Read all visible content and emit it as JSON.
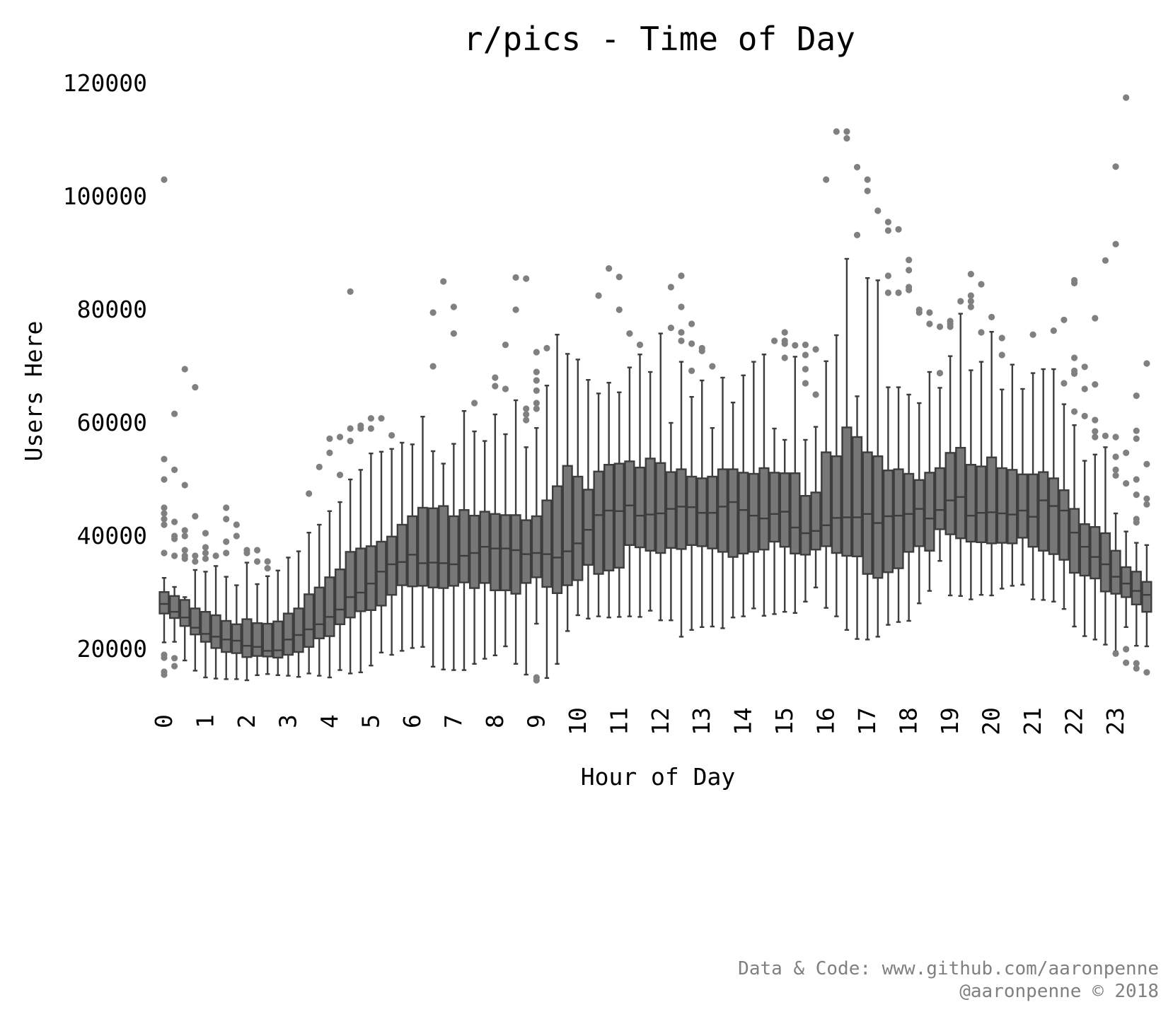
{
  "chart_data": {
    "type": "box",
    "title": "r/pics - Time of Day",
    "xlabel": "Hour of Day",
    "ylabel": "Users Here",
    "ylim": [
      10000,
      122000
    ],
    "yticks": [
      "20000",
      "40000",
      "60000",
      "80000",
      "100000",
      "120000"
    ],
    "ytick_values": [
      20000,
      40000,
      60000,
      80000,
      100000,
      120000
    ],
    "xtick_labels": [
      "0",
      "1",
      "2",
      "3",
      "4",
      "5",
      "6",
      "7",
      "8",
      "9",
      "10",
      "11",
      "12",
      "13",
      "14",
      "15",
      "16",
      "17",
      "18",
      "19",
      "20",
      "21",
      "22",
      "23"
    ],
    "x_axis_note": "96 boxes, one per 15-minute interval (4 per hour)",
    "box_color": "#777777",
    "line_color": "#3d3d3d",
    "flier_color": "#808080",
    "grid": false,
    "credit_line1": "Data & Code: www.github.com/aaronpenne",
    "credit_line2": "@aaronpenne © 2018",
    "boxes": [
      [
        21200,
        26300,
        28000,
        30100,
        32600,
        [
          103000,
          53600,
          50000,
          45000,
          44000,
          43000,
          42000,
          37000,
          19000,
          18500,
          16000,
          15500
        ]
      ],
      [
        21300,
        25500,
        26600,
        29400,
        31000,
        [
          61600,
          51700,
          42500,
          40000,
          39500,
          36500,
          18400,
          17000
        ]
      ],
      [
        18000,
        24100,
        25600,
        28700,
        29200,
        [
          69500,
          49000,
          41000,
          40000,
          37500,
          36500,
          36000
        ]
      ],
      [
        16200,
        22600,
        23800,
        27200,
        34000,
        [
          66300,
          43500,
          36500,
          35500
        ]
      ],
      [
        15000,
        21300,
        22700,
        26600,
        33700,
        [
          40500,
          38000,
          37000,
          36000
        ]
      ],
      [
        14800,
        20200,
        22200,
        26000,
        34700,
        [
          36500
        ]
      ],
      [
        14700,
        19500,
        21700,
        25000,
        32800,
        [
          45000,
          43000,
          39000,
          37000
        ]
      ],
      [
        14700,
        19300,
        21500,
        24400,
        31300,
        [
          42000,
          40000
        ]
      ],
      [
        14500,
        18600,
        20600,
        25300,
        35300,
        [
          37500,
          37000
        ]
      ],
      [
        15400,
        18800,
        20400,
        24600,
        31500,
        [
          37500,
          35500
        ]
      ],
      [
        15600,
        18700,
        19700,
        24500,
        32900,
        [
          35500,
          34300
        ]
      ],
      [
        15400,
        18500,
        19800,
        24900,
        33900,
        []
      ],
      [
        15300,
        19000,
        21700,
        26300,
        36200,
        []
      ],
      [
        15100,
        19500,
        22500,
        27200,
        37300,
        []
      ],
      [
        15700,
        20400,
        23500,
        29700,
        40600,
        [
          47500
        ]
      ],
      [
        15300,
        21900,
        24400,
        30900,
        42000,
        [
          52200
        ]
      ],
      [
        15000,
        22300,
        25700,
        32700,
        44400,
        [
          57200,
          54700
        ]
      ],
      [
        16300,
        24400,
        27000,
        34100,
        46000,
        [
          57500,
          50800
        ]
      ],
      [
        15700,
        25600,
        29200,
        37200,
        50000,
        [
          83200,
          59000,
          56800
        ]
      ],
      [
        15900,
        26700,
        30000,
        37800,
        51700,
        [
          59500,
          59000
        ]
      ],
      [
        17100,
        26900,
        31600,
        38200,
        54600,
        [
          60800,
          59000
        ]
      ],
      [
        19400,
        27700,
        33700,
        39000,
        54900,
        [
          60800
        ]
      ],
      [
        19000,
        29600,
        35000,
        39900,
        55400,
        [
          57800
        ]
      ],
      [
        19700,
        31300,
        35400,
        42000,
        56500,
        []
      ],
      [
        20200,
        31100,
        36700,
        43500,
        56200,
        []
      ],
      [
        20400,
        31200,
        35200,
        45000,
        61100,
        []
      ],
      [
        16900,
        30900,
        35300,
        44900,
        55000,
        [
          79500,
          70000
        ]
      ],
      [
        16400,
        30800,
        35200,
        45300,
        52800,
        [
          85000
        ]
      ],
      [
        16300,
        31200,
        35000,
        43500,
        56300,
        [
          80500,
          75800
        ]
      ],
      [
        16300,
        31800,
        36500,
        44600,
        62100,
        []
      ],
      [
        17400,
        30800,
        37000,
        43600,
        58500,
        [
          63500
        ]
      ],
      [
        18300,
        31700,
        38100,
        44300,
        56800,
        []
      ],
      [
        18900,
        30400,
        37800,
        43900,
        61500,
        [
          68000,
          66500
        ]
      ],
      [
        20500,
        30400,
        37800,
        43700,
        58000,
        [
          73800,
          66000
        ]
      ],
      [
        17400,
        29800,
        37500,
        43700,
        64000,
        [
          85700,
          80000
        ]
      ],
      [
        15500,
        31700,
        36800,
        42800,
        55700,
        [
          85500,
          62500,
          61500,
          60500
        ]
      ],
      [
        24500,
        32700,
        37000,
        43500,
        59100,
        [
          72500,
          69000,
          67500,
          65700,
          63500,
          62500,
          15000,
          14500
        ]
      ],
      [
        14900,
        31000,
        36800,
        46300,
        66600,
        [
          73200
        ]
      ],
      [
        17400,
        29900,
        36200,
        48800,
        75600,
        []
      ],
      [
        23200,
        31300,
        37300,
        52400,
        72200,
        []
      ],
      [
        26000,
        32200,
        38700,
        50500,
        71200,
        []
      ],
      [
        25400,
        34900,
        41100,
        48200,
        67600,
        []
      ],
      [
        25800,
        33300,
        43700,
        51400,
        65200,
        [
          82500
        ]
      ],
      [
        25600,
        33900,
        44500,
        52600,
        67100,
        [
          87300
        ]
      ],
      [
        25700,
        34400,
        44400,
        52800,
        65400,
        [
          85800,
          80000
        ]
      ],
      [
        25800,
        38400,
        45400,
        53200,
        69800,
        [
          75800
        ]
      ],
      [
        25700,
        38000,
        43600,
        52100,
        72100,
        [
          73800
        ]
      ],
      [
        26800,
        37400,
        43800,
        53700,
        69000,
        []
      ],
      [
        25100,
        37000,
        44000,
        52900,
        75800,
        []
      ],
      [
        25100,
        37900,
        44800,
        51300,
        60000,
        [
          84000,
          76800
        ]
      ],
      [
        22200,
        37700,
        45200,
        51800,
        70800,
        [
          86000,
          80500,
          76000,
          74500
        ]
      ],
      [
        23400,
        38400,
        45100,
        50500,
        64600,
        [
          77500,
          74000,
          69200
        ]
      ],
      [
        23900,
        38200,
        44100,
        50200,
        67500,
        [
          73200,
          72700
        ]
      ],
      [
        24000,
        37800,
        44100,
        50500,
        59100,
        [
          70000
        ]
      ],
      [
        23700,
        37200,
        45200,
        51800,
        68000,
        []
      ],
      [
        25600,
        36300,
        46000,
        51800,
        63600,
        []
      ],
      [
        25800,
        36900,
        44600,
        51200,
        68400,
        []
      ],
      [
        27200,
        37200,
        43600,
        51000,
        70800,
        []
      ],
      [
        25900,
        37600,
        43100,
        52000,
        72100,
        []
      ],
      [
        26200,
        39000,
        43900,
        51200,
        59000,
        [
          74500
        ]
      ],
      [
        26600,
        38100,
        44300,
        51100,
        57000,
        [
          76000,
          74500,
          74000,
          71500
        ]
      ],
      [
        26400,
        36900,
        41500,
        51100,
        71700,
        [
          73700
        ]
      ],
      [
        28400,
        36700,
        40500,
        47100,
        57000,
        [
          73800,
          72000,
          69500,
          67000
        ]
      ],
      [
        30900,
        37600,
        40900,
        47700,
        59300,
        [
          73000,
          65000
        ]
      ],
      [
        27300,
        38200,
        41900,
        54800,
        70900,
        [
          103000
        ]
      ],
      [
        25800,
        37000,
        43200,
        54100,
        75500,
        [
          111500
        ]
      ],
      [
        23400,
        36500,
        43300,
        59200,
        89000,
        [
          111500,
          110300
        ]
      ],
      [
        21800,
        36400,
        43300,
        57500,
        64700,
        [
          105200,
          93200
        ]
      ],
      [
        21700,
        33300,
        43900,
        54800,
        85600,
        [
          103000,
          101000
        ]
      ],
      [
        22200,
        32600,
        42300,
        54100,
        85200,
        [
          97500
        ]
      ],
      [
        24300,
        33600,
        43500,
        51600,
        66300,
        [
          95500,
          94000,
          86000,
          83000
        ]
      ],
      [
        24800,
        34300,
        43600,
        51800,
        66300,
        [
          94200,
          83000
        ]
      ],
      [
        25000,
        37200,
        43900,
        51000,
        65000,
        [
          88800,
          87000,
          84000,
          83500
        ]
      ],
      [
        28100,
        38200,
        44800,
        49900,
        63500,
        [
          80000,
          79500
        ]
      ],
      [
        30300,
        37400,
        43100,
        51200,
        69000,
        [
          79500,
          77500
        ]
      ],
      [
        35600,
        41200,
        44600,
        52000,
        66200,
        [
          77000,
          68800
        ]
      ],
      [
        29500,
        40300,
        46300,
        54700,
        71800,
        [
          78000,
          77500,
          77000
        ]
      ],
      [
        29400,
        39600,
        46900,
        55600,
        79300,
        [
          81500
        ]
      ],
      [
        28800,
        39000,
        43600,
        52600,
        69300,
        [
          86300,
          82500,
          81500,
          80500
        ]
      ],
      [
        29600,
        38900,
        44100,
        52300,
        70800,
        [
          84500,
          76000
        ]
      ],
      [
        29500,
        38700,
        44200,
        53900,
        76100,
        [
          78700
        ]
      ],
      [
        30700,
        38800,
        44000,
        52000,
        65900,
        [
          75000,
          72000
        ]
      ],
      [
        31200,
        38700,
        43800,
        51700,
        70300,
        []
      ],
      [
        31400,
        39700,
        44500,
        50900,
        66000,
        []
      ],
      [
        28800,
        38100,
        43400,
        50900,
        68800,
        [
          75600
        ]
      ],
      [
        28700,
        37400,
        46300,
        51300,
        69500,
        []
      ],
      [
        28400,
        36800,
        45300,
        50200,
        69500,
        [
          76300
        ]
      ],
      [
        27100,
        35800,
        44500,
        48100,
        63300,
        [
          78200,
          67000
        ]
      ],
      [
        24000,
        33500,
        40600,
        44800,
        59600,
        [
          85200,
          84700,
          71500,
          69200,
          68700,
          62000
        ]
      ],
      [
        22300,
        33000,
        38100,
        42100,
        53300,
        [
          69900,
          66000,
          61200
        ]
      ],
      [
        21700,
        32500,
        36300,
        41600,
        54400,
        [
          78500,
          66800,
          60500,
          58500,
          57500
        ]
      ],
      [
        20800,
        30200,
        35000,
        40500,
        55700,
        [
          88700,
          57700
        ]
      ],
      [
        19600,
        29800,
        32800,
        37400,
        44000,
        [
          105300,
          91600,
          57500,
          54000,
          51700,
          50700,
          19200
        ]
      ],
      [
        23900,
        29200,
        31600,
        34500,
        40800,
        [
          117500,
          54700,
          49300,
          20000,
          17600
        ]
      ],
      [
        20600,
        27900,
        30300,
        33700,
        38800,
        [
          64800,
          58600,
          57200,
          50000,
          47300,
          43000,
          42400,
          17500,
          16600
        ]
      ],
      [
        20500,
        26600,
        29600,
        31900,
        38400,
        [
          70500,
          52700,
          46600,
          45600,
          15900
        ]
      ]
    ]
  }
}
